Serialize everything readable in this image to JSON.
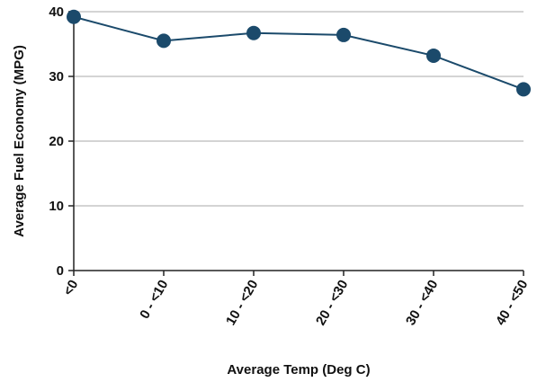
{
  "chart_data": {
    "type": "line",
    "categories": [
      "<0",
      "0 - <10",
      "10 - <20",
      "20 - <30",
      "30 - <40",
      "40 - <50"
    ],
    "series": [
      {
        "values": [
          39.2,
          35.5,
          36.7,
          36.4,
          33.2,
          28.0
        ],
        "color": "#1b4a6b"
      }
    ],
    "xlabel": "Average Temp (Deg C)",
    "ylabel": "Average Fuel Economy (MPG)",
    "ylim": [
      0,
      40
    ],
    "yticks": [
      0,
      10,
      20,
      30,
      40
    ],
    "grid": true,
    "legend": "none"
  }
}
